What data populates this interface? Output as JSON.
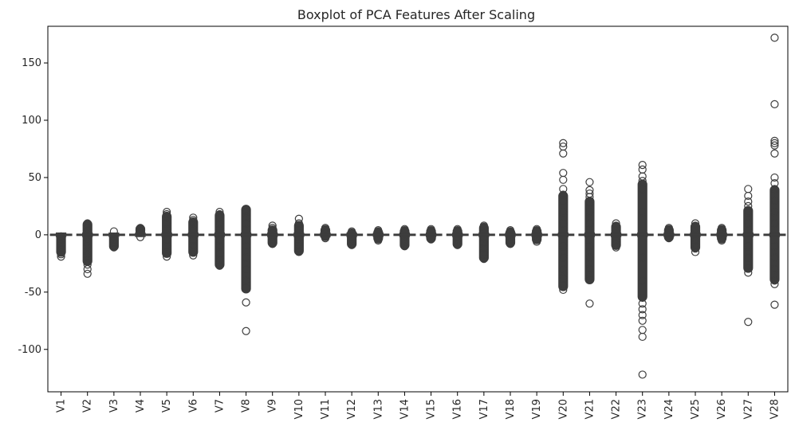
{
  "chart_data": {
    "type": "box",
    "title": "Boxplot of PCA Features After Scaling",
    "xlabel": "",
    "ylabel": "",
    "ylim": [
      -137,
      182
    ],
    "yticks": [
      -100,
      -50,
      0,
      50,
      100,
      150
    ],
    "categories": [
      "V1",
      "V2",
      "V3",
      "V4",
      "V5",
      "V6",
      "V7",
      "V8",
      "V9",
      "V10",
      "V11",
      "V12",
      "V13",
      "V14",
      "V15",
      "V16",
      "V17",
      "V18",
      "V19",
      "V20",
      "V21",
      "V22",
      "V23",
      "V24",
      "V25",
      "V26",
      "V27",
      "V28"
    ],
    "colors": {
      "box": "#3d3d3d",
      "frame": "#000000",
      "text": "#262626",
      "background": "#ffffff"
    },
    "series": [
      {
        "category": "V1",
        "q1": -0.5,
        "median": 0,
        "q3": 0.5,
        "whisker_low": -1.5,
        "whisker_high": 1.5,
        "outlier_range": [
          -16,
          -1
        ],
        "outliers": [
          -19,
          -17,
          -15,
          -13,
          -11,
          -9,
          -7,
          -5,
          -3,
          -2
        ]
      },
      {
        "category": "V2",
        "q1": -0.5,
        "median": 0,
        "q3": 0.5,
        "whisker_low": -1.5,
        "whisker_high": 1.5,
        "outlier_range": [
          -24,
          10
        ],
        "outliers": [
          -34,
          -30,
          -26,
          -22,
          -18,
          -14,
          -10,
          -6,
          -3,
          3,
          6,
          8,
          10
        ]
      },
      {
        "category": "V3",
        "q1": -0.5,
        "median": 0,
        "q3": 0.5,
        "whisker_low": -1.5,
        "whisker_high": 1.5,
        "outlier_range": [
          -11,
          -2
        ],
        "outliers": [
          -11,
          -9,
          -7,
          -5,
          -3,
          3
        ]
      },
      {
        "category": "V4",
        "q1": -0.5,
        "median": 0,
        "q3": 0.5,
        "whisker_low": -1.5,
        "whisker_high": 1.5,
        "outlier_range": [
          2,
          6
        ],
        "outliers": [
          -2,
          2,
          3,
          4,
          5,
          6
        ]
      },
      {
        "category": "V5",
        "q1": -0.5,
        "median": 0,
        "q3": 0.5,
        "whisker_low": -1.5,
        "whisker_high": 1.5,
        "outlier_range": [
          -17,
          17
        ],
        "outliers": [
          -19,
          -15,
          -10,
          -5,
          5,
          10,
          15,
          18,
          20
        ]
      },
      {
        "category": "V6",
        "q1": -0.5,
        "median": 0,
        "q3": 0.5,
        "whisker_low": -1.5,
        "whisker_high": 1.5,
        "outlier_range": [
          -16,
          12
        ],
        "outliers": [
          -18,
          -14,
          -10,
          -5,
          5,
          10,
          13,
          15
        ]
      },
      {
        "category": "V7",
        "q1": -0.5,
        "median": 0,
        "q3": 0.5,
        "whisker_low": -1.5,
        "whisker_high": 1.5,
        "outlier_range": [
          -27,
          18
        ],
        "outliers": [
          -27,
          -22,
          -16,
          -10,
          -5,
          5,
          10,
          15,
          18,
          20
        ]
      },
      {
        "category": "V8",
        "q1": -0.5,
        "median": 0,
        "q3": 0.5,
        "whisker_low": -1.5,
        "whisker_high": 1.5,
        "outlier_range": [
          -48,
          23
        ],
        "outliers": [
          -84,
          -59,
          -46,
          -40,
          -30,
          -20,
          -10,
          5,
          10,
          15,
          20,
          22
        ]
      },
      {
        "category": "V9",
        "q1": -0.5,
        "median": 0,
        "q3": 0.5,
        "whisker_low": -1.5,
        "whisker_high": 1.5,
        "outlier_range": [
          -8,
          5
        ],
        "outliers": [
          -8,
          -6,
          -4,
          4,
          6,
          8
        ]
      },
      {
        "category": "V10",
        "q1": -0.5,
        "median": 0,
        "q3": 0.5,
        "whisker_low": -1.5,
        "whisker_high": 1.5,
        "outlier_range": [
          -15,
          9
        ],
        "outliers": [
          -15,
          -12,
          -8,
          -4,
          4,
          8,
          10,
          14
        ]
      },
      {
        "category": "V11",
        "q1": -0.5,
        "median": 0,
        "q3": 0.5,
        "whisker_low": -1.5,
        "whisker_high": 1.5,
        "outlier_range": [
          -2,
          5
        ],
        "outliers": [
          -3,
          -2,
          2,
          3,
          4,
          5,
          6
        ]
      },
      {
        "category": "V12",
        "q1": -0.5,
        "median": 0,
        "q3": 0.5,
        "whisker_low": -1.5,
        "whisker_high": 1.5,
        "outlier_range": [
          -9,
          2
        ],
        "outliers": [
          -9,
          -7,
          -5,
          -3,
          2,
          3
        ]
      },
      {
        "category": "V13",
        "q1": -0.5,
        "median": 0,
        "q3": 0.5,
        "whisker_low": -1.5,
        "whisker_high": 1.5,
        "outlier_range": [
          -4,
          3
        ],
        "outliers": [
          -5,
          -4,
          -3,
          2,
          3,
          4
        ]
      },
      {
        "category": "V14",
        "q1": -0.5,
        "median": 0,
        "q3": 0.5,
        "whisker_low": -1.5,
        "whisker_high": 1.5,
        "outlier_range": [
          -10,
          4
        ],
        "outliers": [
          -10,
          -8,
          -6,
          -4,
          3,
          4,
          5
        ]
      },
      {
        "category": "V15",
        "q1": -0.5,
        "median": 0,
        "q3": 0.5,
        "whisker_low": -1.5,
        "whisker_high": 1.5,
        "outlier_range": [
          -4,
          4
        ],
        "outliers": [
          -4,
          -3,
          3,
          4,
          5
        ]
      },
      {
        "category": "V16",
        "q1": -0.5,
        "median": 0,
        "q3": 0.5,
        "whisker_low": -1.5,
        "whisker_high": 1.5,
        "outlier_range": [
          -9,
          4
        ],
        "outliers": [
          -9,
          -7,
          -5,
          -3,
          3,
          4,
          5
        ]
      },
      {
        "category": "V17",
        "q1": -0.5,
        "median": 0,
        "q3": 0.5,
        "whisker_low": -1.5,
        "whisker_high": 1.5,
        "outlier_range": [
          -21,
          7
        ],
        "outliers": [
          -21,
          -17,
          -12,
          -7,
          -3,
          3,
          5,
          7,
          8
        ]
      },
      {
        "category": "V18",
        "q1": -0.5,
        "median": 0,
        "q3": 0.5,
        "whisker_low": -1.5,
        "whisker_high": 1.5,
        "outlier_range": [
          -8,
          3
        ],
        "outliers": [
          -8,
          -6,
          -4,
          -3,
          2,
          3,
          4
        ]
      },
      {
        "category": "V19",
        "q1": -0.5,
        "median": 0,
        "q3": 0.5,
        "whisker_low": -1.5,
        "whisker_high": 1.5,
        "outlier_range": [
          -5,
          4
        ],
        "outliers": [
          -6,
          -4,
          -3,
          3,
          4,
          5
        ]
      },
      {
        "category": "V20",
        "q1": -0.5,
        "median": 0,
        "q3": 0.5,
        "whisker_low": -1.5,
        "whisker_high": 1.5,
        "outlier_range": [
          -46,
          35
        ],
        "outliers": [
          -48,
          -44,
          -38,
          -30,
          -20,
          -10,
          10,
          20,
          30,
          35,
          40,
          48,
          54,
          71,
          77,
          80
        ]
      },
      {
        "category": "V21",
        "q1": -0.5,
        "median": 0,
        "q3": 0.5,
        "whisker_low": -1.5,
        "whisker_high": 1.5,
        "outlier_range": [
          -40,
          30
        ],
        "outliers": [
          -60,
          -39,
          -30,
          -20,
          -10,
          10,
          20,
          28,
          33,
          36,
          39,
          46
        ]
      },
      {
        "category": "V22",
        "q1": -0.5,
        "median": 0,
        "q3": 0.5,
        "whisker_low": -1.5,
        "whisker_high": 1.5,
        "outlier_range": [
          -10,
          8
        ],
        "outliers": [
          -11,
          -8,
          -5,
          -3,
          3,
          5,
          8,
          10
        ]
      },
      {
        "category": "V23",
        "q1": -0.5,
        "median": 0,
        "q3": 0.5,
        "whisker_low": -1.5,
        "whisker_high": 1.5,
        "outlier_range": [
          -55,
          45
        ],
        "outliers": [
          -122,
          -89,
          -83,
          -75,
          -70,
          -65,
          -60,
          -55,
          -40,
          -20,
          20,
          40,
          47,
          51,
          57,
          61
        ]
      },
      {
        "category": "V24",
        "q1": -0.5,
        "median": 0,
        "q3": 0.5,
        "whisker_low": -1.5,
        "whisker_high": 1.5,
        "outlier_range": [
          -3,
          5
        ],
        "outliers": [
          -3,
          -2,
          2,
          3,
          4,
          5,
          6
        ]
      },
      {
        "category": "V25",
        "q1": -0.5,
        "median": 0,
        "q3": 0.5,
        "whisker_low": -1.5,
        "whisker_high": 1.5,
        "outlier_range": [
          -12,
          8
        ],
        "outliers": [
          -15,
          -12,
          -9,
          -5,
          -3,
          3,
          5,
          8,
          10
        ]
      },
      {
        "category": "V26",
        "q1": -0.5,
        "median": 0,
        "q3": 0.5,
        "whisker_low": -1.5,
        "whisker_high": 1.5,
        "outlier_range": [
          -4,
          5
        ],
        "outliers": [
          -5,
          -4,
          -3,
          3,
          4,
          5,
          6
        ]
      },
      {
        "category": "V27",
        "q1": -0.5,
        "median": 0,
        "q3": 0.5,
        "whisker_low": -1.5,
        "whisker_high": 1.5,
        "outlier_range": [
          -30,
          22
        ],
        "outliers": [
          -76,
          -33,
          -29,
          -20,
          -10,
          10,
          20,
          25,
          29,
          34,
          40
        ]
      },
      {
        "category": "V28",
        "q1": -0.5,
        "median": 0,
        "q3": 0.5,
        "whisker_low": -1.5,
        "whisker_high": 1.5,
        "outlier_range": [
          -40,
          40
        ],
        "outliers": [
          -61,
          -43,
          -40,
          -30,
          -20,
          -10,
          10,
          20,
          30,
          40,
          45,
          50,
          71,
          78,
          80,
          82,
          114,
          172
        ]
      }
    ]
  }
}
